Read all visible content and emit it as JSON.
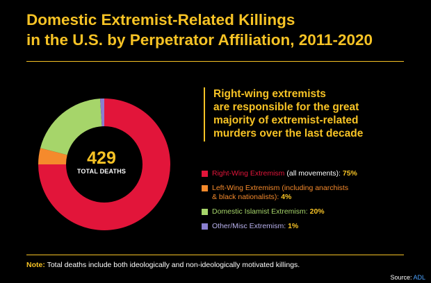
{
  "title_lines": [
    "Domestic Extremist-Related Killings",
    "in the U.S. by Perpetrator Affiliation, 2011-2020"
  ],
  "callout_lines": [
    "Right-wing extremists",
    "are responsible for the great",
    "majority of extremist-related",
    "murders over the last decade"
  ],
  "center": {
    "total": "429",
    "label": "TOTAL DEATHS"
  },
  "legend": [
    {
      "main": "Right-Wing Extremism",
      "detail": " (all movements): ",
      "detail2": "",
      "pct": "75%"
    },
    {
      "main": "Left-Wing Extremism",
      "detail": " (including anarchists",
      "detail2": "& black nationalists): ",
      "pct": "4%"
    },
    {
      "main": "Domestic Islamist Extremism: ",
      "detail": "",
      "detail2": "",
      "pct": "20%"
    },
    {
      "main": "Other/Misc Extremism: ",
      "detail": "",
      "detail2": "",
      "pct": "1%"
    }
  ],
  "note": {
    "label": "Note:",
    "text": " Total deaths include both ideologically and non-ideologically motivated killings."
  },
  "source": {
    "label": "Source: ",
    "name": "ADL"
  },
  "colors": {
    "accent": "#f7c325",
    "right_wing": "#e2153a",
    "left_wing": "#f58a2c",
    "islamist": "#a6d56a",
    "other": "#8a7fd0"
  },
  "chart_data": {
    "type": "pie",
    "donut": true,
    "total": 429,
    "slices": [
      {
        "label": "Right-Wing Extremism (all movements)",
        "value": 75,
        "color": "#e2153a"
      },
      {
        "label": "Left-Wing Extremism (including anarchists & black nationalists)",
        "value": 4,
        "color": "#f58a2c"
      },
      {
        "label": "Domestic Islamist Extremism",
        "value": 20,
        "color": "#a6d56a"
      },
      {
        "label": "Other/Misc Extremism",
        "value": 1,
        "color": "#8a7fd0"
      }
    ]
  }
}
